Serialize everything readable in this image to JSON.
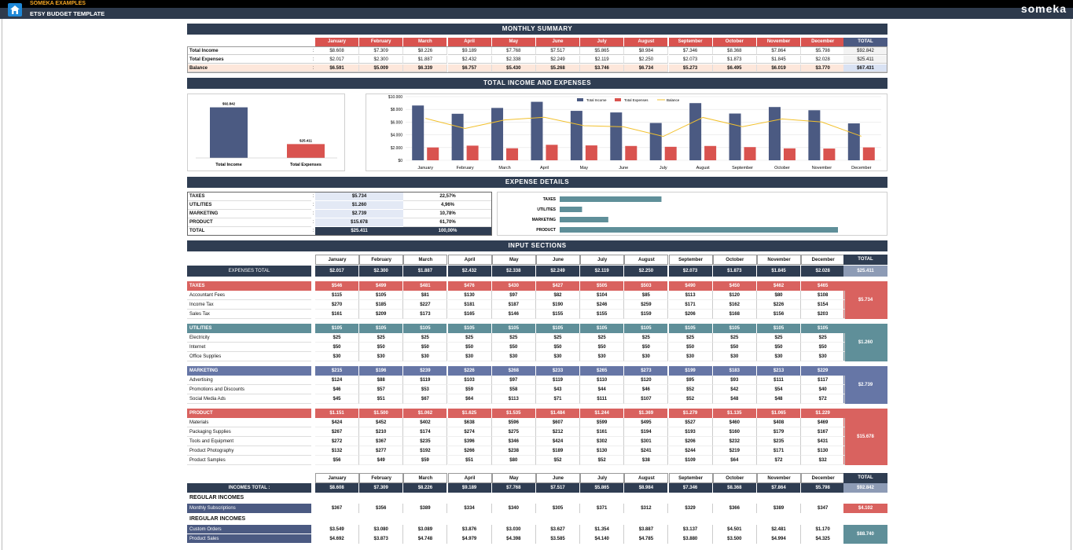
{
  "header": {
    "brand": "SOMEKA EXAMPLES",
    "title": "ETSY BUDGET TEMPLATE",
    "logo": "someka"
  },
  "months": [
    "January",
    "February",
    "March",
    "April",
    "May",
    "June",
    "July",
    "August",
    "September",
    "October",
    "November",
    "December"
  ],
  "total_label": "TOTAL",
  "summary": {
    "title": "MONTHLY SUMMARY",
    "rows": [
      {
        "label": "Total Income",
        "values": [
          "$8.608",
          "$7.309",
          "$8.226",
          "$9.189",
          "$7.768",
          "$7.517",
          "$5.865",
          "$8.984",
          "$7.346",
          "$8.368",
          "$7.864",
          "$5.798"
        ],
        "total": "$92.842"
      },
      {
        "label": "Total Expenses",
        "values": [
          "$2.017",
          "$2.300",
          "$1.887",
          "$2.432",
          "$2.338",
          "$2.249",
          "$2.119",
          "$2.250",
          "$2.073",
          "$1.873",
          "$1.845",
          "$2.028"
        ],
        "total": "$25.411"
      },
      {
        "label": "Balance",
        "values": [
          "$6.591",
          "$5.009",
          "$6.339",
          "$6.757",
          "$5.430",
          "$5.268",
          "$3.746",
          "$6.734",
          "$5.273",
          "$6.495",
          "$6.019",
          "$3.770"
        ],
        "total": "$67.431"
      }
    ]
  },
  "income_expenses": {
    "title": "TOTAL INCOME AND EXPENSES",
    "big": {
      "income_label": "Total Income",
      "expense_label": "Total Expenses",
      "income_value": "$92.842",
      "expense_value": "$25.411"
    }
  },
  "chart_data": [
    {
      "type": "bar",
      "categories": [
        "Total Income",
        "Total Expenses"
      ],
      "values": [
        92842,
        25411
      ],
      "data_labels": [
        "$92.842",
        "$25.411"
      ]
    },
    {
      "type": "bar",
      "categories": [
        "January",
        "February",
        "March",
        "April",
        "May",
        "June",
        "July",
        "August",
        "September",
        "October",
        "November",
        "December"
      ],
      "series": [
        {
          "name": "Total Income",
          "type": "bar",
          "color": "#4b5a82",
          "values": [
            8608,
            7309,
            8226,
            9189,
            7768,
            7517,
            5865,
            8984,
            7346,
            8368,
            7864,
            5798
          ]
        },
        {
          "name": "Total Expenses",
          "type": "bar",
          "color": "#d9534f",
          "values": [
            2017,
            2300,
            1887,
            2432,
            2338,
            2249,
            2119,
            2250,
            2073,
            1873,
            1845,
            2028
          ]
        },
        {
          "name": "Balance",
          "type": "line",
          "color": "#f2c12e",
          "values": [
            6591,
            5009,
            6339,
            6757,
            5430,
            5268,
            3746,
            6734,
            5273,
            6495,
            6019,
            3770
          ]
        }
      ],
      "yticks": [
        "$0",
        "$2.000",
        "$4.000",
        "$6.000",
        "$8.000",
        "$10.000"
      ],
      "ylim": [
        0,
        10000
      ],
      "legend": "top"
    },
    {
      "type": "bar",
      "orientation": "horizontal",
      "categories": [
        "TAXES",
        "UTILITIES",
        "MARKETING",
        "PRODUCT"
      ],
      "values": [
        5734,
        1260,
        2739,
        15678
      ]
    }
  ],
  "expense_details": {
    "title": "EXPENSE DETAILS",
    "rows": [
      {
        "label": "TAXES",
        "value": "$5.734",
        "pct": "22,57%"
      },
      {
        "label": "UTILITIES",
        "value": "$1.260",
        "pct": "4,96%"
      },
      {
        "label": "MARKETING",
        "value": "$2.739",
        "pct": "10,78%"
      },
      {
        "label": "PRODUCT",
        "value": "$15.678",
        "pct": "61,70%"
      }
    ],
    "total": {
      "label": "TOTAL",
      "value": "$25.411",
      "pct": "100,00%"
    }
  },
  "input": {
    "title": "INPUT SECTIONS",
    "expenses_total_label": "EXPENSES TOTAL",
    "expenses_total": [
      "$2.017",
      "$2.300",
      "$1.887",
      "$2.432",
      "$2.338",
      "$2.249",
      "$2.119",
      "$2.250",
      "$2.073",
      "$1.873",
      "$1.845",
      "$2.028"
    ],
    "expenses_grand": "$25.411",
    "groups": [
      {
        "name": "TAXES",
        "color": "#d9625f",
        "totals": [
          "$546",
          "$499",
          "$481",
          "$476",
          "$430",
          "$427",
          "$505",
          "$503",
          "$490",
          "$450",
          "$462",
          "$465"
        ],
        "grand": "$5.734",
        "items": [
          {
            "label": "Accountant Fees",
            "values": [
              "$115",
              "$105",
              "$81",
              "$130",
              "$97",
              "$82",
              "$104",
              "$85",
              "$113",
              "$120",
              "$80",
              "$108"
            ]
          },
          {
            "label": "Income Tax",
            "values": [
              "$270",
              "$185",
              "$227",
              "$181",
              "$187",
              "$190",
              "$246",
              "$259",
              "$171",
              "$162",
              "$226",
              "$154"
            ]
          },
          {
            "label": "Sales Tax",
            "values": [
              "$161",
              "$209",
              "$173",
              "$165",
              "$146",
              "$155",
              "$155",
              "$159",
              "$206",
              "$168",
              "$156",
              "$203"
            ]
          }
        ]
      },
      {
        "name": "UTILITIES",
        "color": "#5f8f99",
        "totals": [
          "$105",
          "$105",
          "$105",
          "$105",
          "$105",
          "$105",
          "$105",
          "$105",
          "$105",
          "$105",
          "$105",
          "$105"
        ],
        "grand": "$1.260",
        "items": [
          {
            "label": "Electricity",
            "values": [
              "$25",
              "$25",
              "$25",
              "$25",
              "$25",
              "$25",
              "$25",
              "$25",
              "$25",
              "$25",
              "$25",
              "$25"
            ]
          },
          {
            "label": "Internet",
            "values": [
              "$50",
              "$50",
              "$50",
              "$50",
              "$50",
              "$50",
              "$50",
              "$50",
              "$50",
              "$50",
              "$50",
              "$50"
            ]
          },
          {
            "label": "Office Supplies",
            "values": [
              "$30",
              "$30",
              "$30",
              "$30",
              "$30",
              "$30",
              "$30",
              "$30",
              "$30",
              "$30",
              "$30",
              "$30"
            ]
          }
        ]
      },
      {
        "name": "MARKETING",
        "color": "#6676a6",
        "totals": [
          "$215",
          "$196",
          "$239",
          "$226",
          "$268",
          "$233",
          "$265",
          "$273",
          "$199",
          "$183",
          "$213",
          "$229"
        ],
        "grand": "$2.739",
        "items": [
          {
            "label": "Advertising",
            "values": [
              "$124",
              "$88",
              "$119",
              "$103",
              "$97",
              "$119",
              "$110",
              "$120",
              "$95",
              "$93",
              "$111",
              "$117"
            ]
          },
          {
            "label": "Promotions and Discounts",
            "values": [
              "$46",
              "$57",
              "$53",
              "$59",
              "$58",
              "$43",
              "$44",
              "$46",
              "$52",
              "$42",
              "$54",
              "$40"
            ]
          },
          {
            "label": "Social Media Ads",
            "values": [
              "$45",
              "$51",
              "$67",
              "$64",
              "$113",
              "$71",
              "$111",
              "$107",
              "$52",
              "$48",
              "$48",
              "$72"
            ]
          }
        ]
      },
      {
        "name": "PRODUCT",
        "color": "#d9625f",
        "totals": [
          "$1.151",
          "$1.500",
          "$1.062",
          "$1.625",
          "$1.535",
          "$1.484",
          "$1.244",
          "$1.369",
          "$1.279",
          "$1.135",
          "$1.065",
          "$1.229"
        ],
        "grand": "$15.678",
        "items": [
          {
            "label": "Materials",
            "values": [
              "$424",
              "$452",
              "$402",
              "$638",
              "$596",
              "$607",
              "$599",
              "$495",
              "$527",
              "$460",
              "$408",
              "$469"
            ]
          },
          {
            "label": "Packaging Supplies",
            "values": [
              "$267",
              "$210",
              "$174",
              "$274",
              "$275",
              "$212",
              "$161",
              "$194",
              "$193",
              "$160",
              "$179",
              "$167"
            ]
          },
          {
            "label": "Tools and Equipment",
            "values": [
              "$272",
              "$367",
              "$235",
              "$396",
              "$346",
              "$424",
              "$302",
              "$301",
              "$206",
              "$232",
              "$235",
              "$431"
            ]
          },
          {
            "label": "Product Photography",
            "values": [
              "$132",
              "$277",
              "$192",
              "$266",
              "$238",
              "$189",
              "$130",
              "$241",
              "$244",
              "$219",
              "$171",
              "$130"
            ]
          },
          {
            "label": "Product Samples",
            "values": [
              "$56",
              "$49",
              "$59",
              "$51",
              "$80",
              "$52",
              "$52",
              "$38",
              "$109",
              "$64",
              "$72",
              "$32"
            ]
          }
        ]
      }
    ],
    "incomes_total_label": "INCOMES TOTAL :",
    "incomes_total": [
      "$8.608",
      "$7.309",
      "$8.226",
      "$9.189",
      "$7.768",
      "$7.517",
      "$5.865",
      "$8.984",
      "$7.346",
      "$8.368",
      "$7.864",
      "$5.798"
    ],
    "incomes_grand": "$92.842",
    "regular_label": "REGULAR INCOMES",
    "regular": [
      {
        "label": "Monthly Subscriptions",
        "values": [
          "$367",
          "$356",
          "$389",
          "$334",
          "$340",
          "$305",
          "$371",
          "$312",
          "$329",
          "$366",
          "$389",
          "$347"
        ],
        "grand": "$4.102"
      }
    ],
    "irregular_label": "IREGULAR INCOMES",
    "irregular": [
      {
        "label": "Custom Orders",
        "values": [
          "$3.549",
          "$3.080",
          "$3.089",
          "$3.876",
          "$3.030",
          "$3.627",
          "$1.354",
          "$3.887",
          "$3.137",
          "$4.501",
          "$2.481",
          "$1.170"
        ]
      },
      {
        "label": "Product Sales",
        "values": [
          "$4.692",
          "$3.873",
          "$4.748",
          "$4.979",
          "$4.398",
          "$3.585",
          "$4.140",
          "$4.785",
          "$3.880",
          "$3.500",
          "$4.994",
          "$4.325"
        ]
      }
    ],
    "irregular_grand": "$88.740"
  }
}
